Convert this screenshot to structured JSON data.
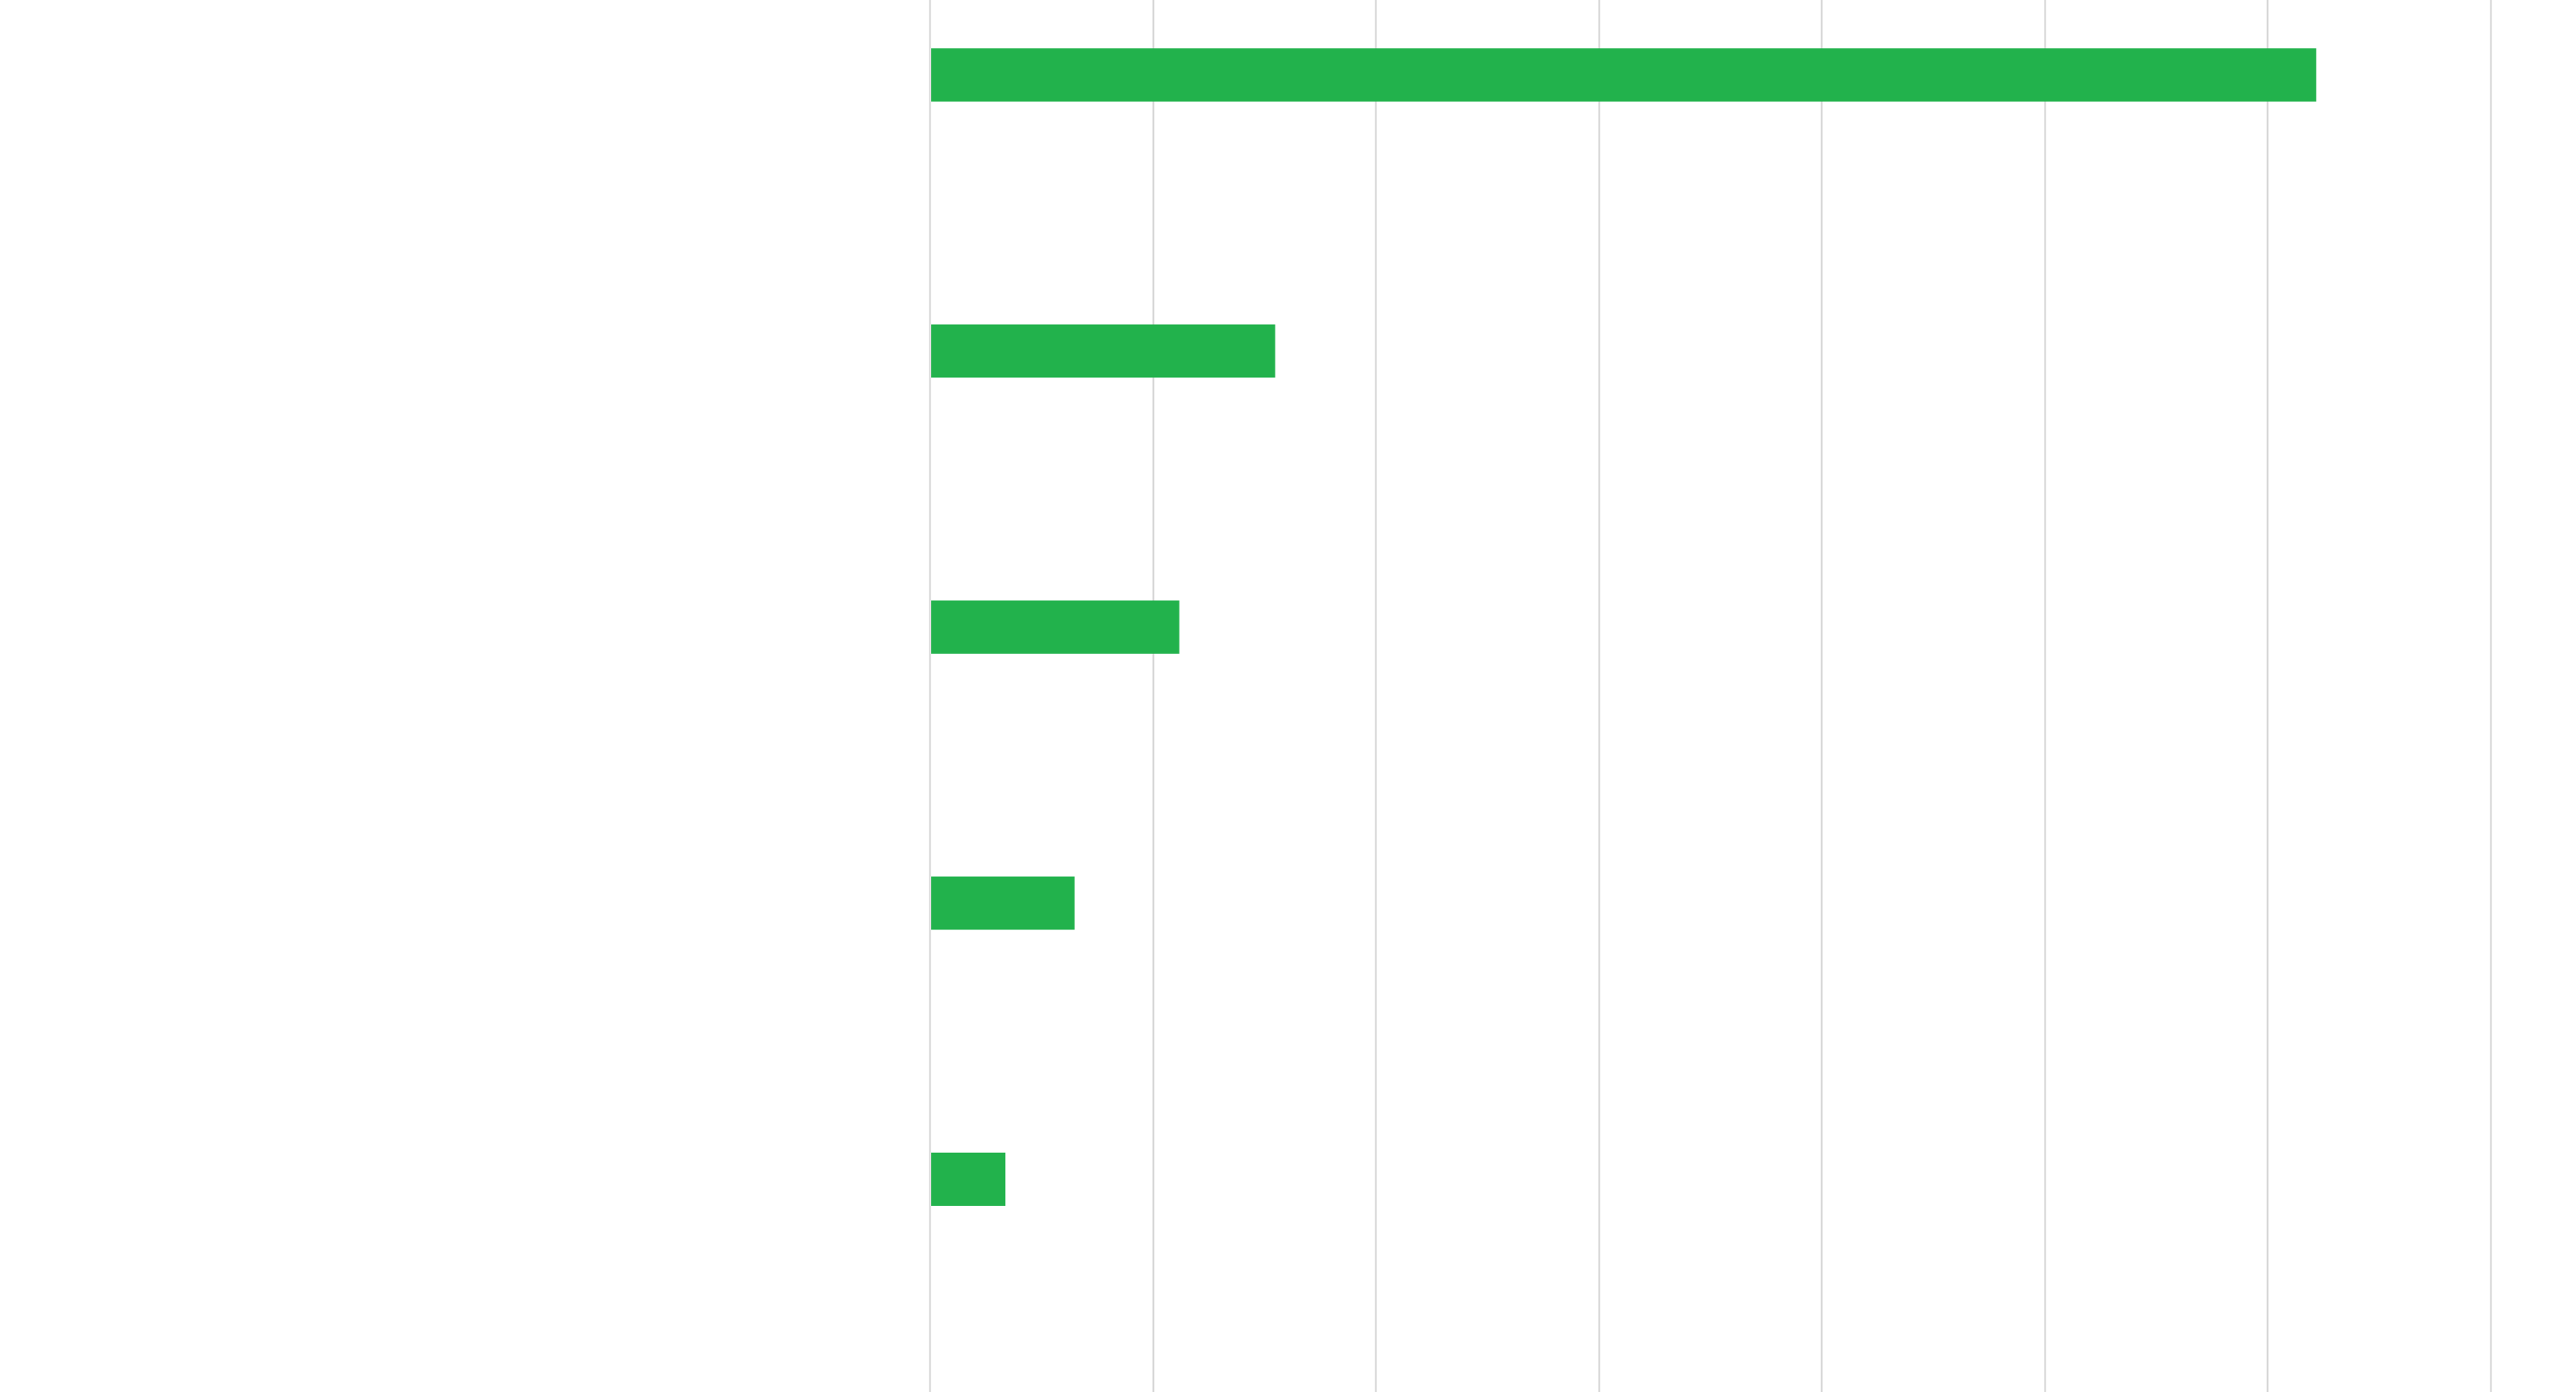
{
  "chart_data": {
    "type": "bar",
    "orientation": "horizontal",
    "categories": [
      "",
      "",
      "",
      "",
      ""
    ],
    "values": [
      6.22,
      1.55,
      1.12,
      0.65,
      0.34
    ],
    "xlim": [
      0,
      7
    ],
    "xticks": [
      0,
      1,
      2,
      3,
      4,
      5,
      6,
      7
    ],
    "grid": true,
    "bar_color": "#22b24c",
    "grid_color": "#d3d3d3",
    "label_color": "#ffffff",
    "title": "",
    "xlabel": "",
    "ylabel": ""
  }
}
